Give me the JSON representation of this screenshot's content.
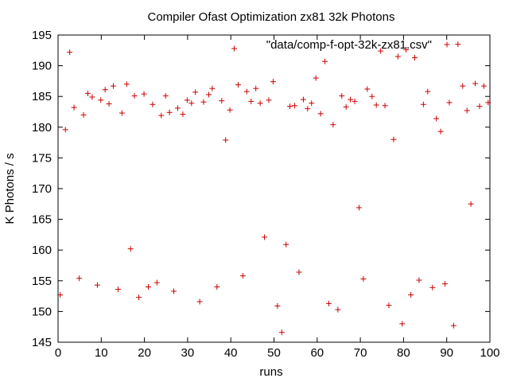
{
  "chart_data": {
    "type": "scatter",
    "title": "Compiler Ofast Optimization zx81 32k Photons",
    "xlabel": "runs",
    "ylabel": "K Photons / s",
    "xlim": [
      0,
      100
    ],
    "ylim": [
      145,
      195
    ],
    "xticks": [
      "0",
      "10",
      "20",
      "30",
      "40",
      "50",
      "60",
      "70",
      "80",
      "90",
      "100"
    ],
    "yticks": [
      "145",
      "150",
      "155",
      "160",
      "165",
      "170",
      "175",
      "180",
      "185",
      "190",
      "195"
    ],
    "grid": false,
    "legend": "top-right",
    "marker": "plus",
    "color": "#cc0000",
    "series": [
      {
        "name": "\"data/comp-f-opt-32k-zx81.csv\"",
        "points": [
          [
            0.5,
            152.7
          ],
          [
            1.7,
            179.6
          ],
          [
            2.7,
            192.2
          ],
          [
            3.7,
            183.2
          ],
          [
            4.9,
            155.4
          ],
          [
            5.9,
            182.0
          ],
          [
            6.9,
            185.5
          ],
          [
            7.9,
            184.9
          ],
          [
            9.1,
            154.3
          ],
          [
            9.9,
            184.4
          ],
          [
            10.9,
            186.1
          ],
          [
            11.8,
            183.8
          ],
          [
            12.8,
            186.7
          ],
          [
            13.9,
            153.6
          ],
          [
            14.8,
            182.3
          ],
          [
            15.9,
            187.0
          ],
          [
            16.8,
            160.2
          ],
          [
            17.7,
            185.1
          ],
          [
            18.7,
            152.3
          ],
          [
            19.9,
            185.4
          ],
          [
            20.9,
            154.0
          ],
          [
            21.9,
            183.7
          ],
          [
            22.9,
            154.7
          ],
          [
            23.9,
            181.9
          ],
          [
            24.9,
            185.1
          ],
          [
            25.8,
            182.4
          ],
          [
            26.8,
            153.3
          ],
          [
            27.7,
            183.1
          ],
          [
            28.9,
            182.1
          ],
          [
            29.9,
            184.4
          ],
          [
            30.9,
            183.9
          ],
          [
            31.8,
            185.7
          ],
          [
            32.8,
            151.6
          ],
          [
            33.7,
            184.1
          ],
          [
            34.9,
            185.3
          ],
          [
            35.7,
            186.3
          ],
          [
            36.8,
            154.0
          ],
          [
            37.9,
            184.3
          ],
          [
            38.8,
            177.9
          ],
          [
            39.8,
            182.8
          ],
          [
            40.8,
            192.8
          ],
          [
            41.7,
            186.9
          ],
          [
            42.8,
            155.8
          ],
          [
            43.7,
            185.8
          ],
          [
            44.7,
            184.2
          ],
          [
            45.8,
            186.3
          ],
          [
            46.8,
            183.9
          ],
          [
            47.8,
            162.1
          ],
          [
            48.8,
            184.4
          ],
          [
            49.8,
            187.4
          ],
          [
            50.8,
            150.9
          ],
          [
            51.8,
            146.6
          ],
          [
            52.8,
            160.9
          ],
          [
            53.7,
            183.4
          ],
          [
            54.8,
            183.5
          ],
          [
            55.8,
            156.4
          ],
          [
            56.8,
            184.5
          ],
          [
            57.8,
            183.0
          ],
          [
            58.7,
            183.9
          ],
          [
            59.7,
            188.0
          ],
          [
            60.8,
            182.2
          ],
          [
            61.8,
            190.7
          ],
          [
            62.7,
            151.3
          ],
          [
            63.7,
            180.4
          ],
          [
            64.8,
            150.3
          ],
          [
            65.7,
            185.1
          ],
          [
            66.7,
            183.3
          ],
          [
            67.7,
            184.5
          ],
          [
            68.7,
            184.2
          ],
          [
            69.7,
            166.9
          ],
          [
            70.7,
            155.3
          ],
          [
            71.6,
            186.2
          ],
          [
            72.7,
            185.0
          ],
          [
            73.7,
            183.6
          ],
          [
            74.7,
            192.4
          ],
          [
            75.7,
            183.5
          ],
          [
            76.6,
            151.0
          ],
          [
            77.7,
            178.0
          ],
          [
            78.7,
            191.5
          ],
          [
            79.7,
            148.0
          ],
          [
            80.6,
            192.6
          ],
          [
            81.7,
            152.7
          ],
          [
            82.6,
            191.3
          ],
          [
            83.6,
            155.1
          ],
          [
            84.6,
            183.7
          ],
          [
            85.6,
            185.8
          ],
          [
            86.7,
            153.9
          ],
          [
            87.6,
            181.4
          ],
          [
            88.6,
            179.3
          ],
          [
            89.6,
            154.5
          ],
          [
            90.6,
            184.0
          ],
          [
            91.6,
            147.7
          ],
          [
            92.6,
            193.5
          ],
          [
            93.7,
            186.7
          ],
          [
            94.7,
            182.7
          ],
          [
            95.6,
            167.5
          ],
          [
            96.6,
            187.1
          ],
          [
            97.6,
            183.4
          ],
          [
            98.6,
            186.7
          ],
          [
            99.6,
            184.0
          ]
        ]
      }
    ]
  }
}
